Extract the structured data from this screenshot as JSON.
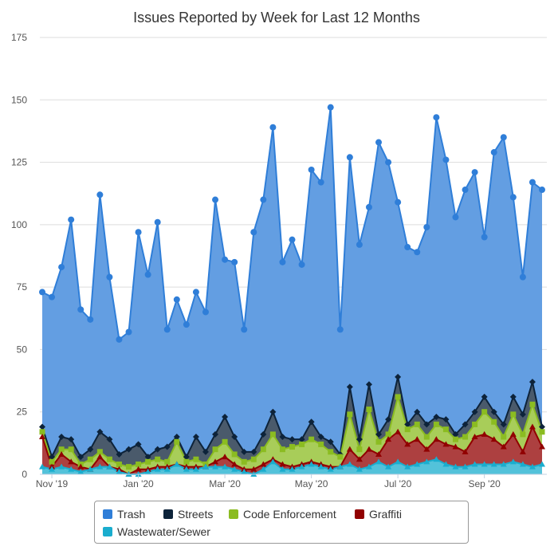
{
  "chart_data": {
    "type": "area",
    "stacked": true,
    "title": "Issues Reported by Week for Last 12 Months",
    "xlabel": "",
    "ylabel": "",
    "ylim": [
      0,
      175
    ],
    "y_ticks": [
      0,
      25,
      50,
      75,
      100,
      125,
      150,
      175
    ],
    "x_tick_labels": [
      {
        "label": "Nov '19",
        "week_index": 1
      },
      {
        "label": "Jan '20",
        "week_index": 10
      },
      {
        "label": "Mar '20",
        "week_index": 19
      },
      {
        "label": "May '20",
        "week_index": 28
      },
      {
        "label": "Jul '20",
        "week_index": 37
      },
      {
        "label": "Sep '20",
        "week_index": 46
      }
    ],
    "grid": true,
    "legend_position": "bottom",
    "colors": {
      "trash": "#2f7ed8",
      "streets": "#0d233a",
      "code_enforcement": "#8bbc21",
      "graffiti": "#910000",
      "wastewater": "#1aadce"
    },
    "series": [
      {
        "name": "Trash",
        "key": "trash",
        "marker": "circle",
        "cumulative_totals": [
          73,
          71,
          83,
          102,
          66,
          62,
          112,
          79,
          54,
          57,
          97,
          80,
          101,
          58,
          70,
          60,
          73,
          65,
          110,
          86,
          85,
          58,
          97,
          110,
          139,
          85,
          94,
          84,
          122,
          117,
          147,
          58,
          127,
          92,
          107,
          133,
          125,
          109,
          91,
          89,
          99,
          143,
          126,
          103,
          114,
          121,
          95,
          129,
          135,
          111,
          79,
          117,
          114
        ]
      },
      {
        "name": "Streets",
        "key": "streets",
        "marker": "diamond",
        "cumulative_totals": [
          19,
          7,
          15,
          14,
          7,
          10,
          17,
          14,
          8,
          10,
          12,
          7,
          10,
          11,
          15,
          7,
          15,
          9,
          16,
          23,
          15,
          9,
          9,
          16,
          25,
          15,
          14,
          14,
          21,
          15,
          13,
          8,
          35,
          14,
          36,
          16,
          22,
          39,
          20,
          25,
          20,
          23,
          22,
          16,
          20,
          25,
          31,
          25,
          20,
          31,
          24,
          37,
          19
        ]
      },
      {
        "name": "Code Enforcement",
        "key": "code_enforcement",
        "marker": "square",
        "cumulative_totals": [
          17,
          5,
          10,
          10,
          4,
          6,
          9,
          6,
          4,
          3,
          4,
          5,
          6,
          5,
          13,
          5,
          6,
          4,
          10,
          13,
          8,
          5,
          6,
          10,
          16,
          10,
          11,
          12,
          14,
          12,
          9,
          7,
          24,
          10,
          26,
          13,
          16,
          31,
          18,
          20,
          15,
          20,
          18,
          14,
          15,
          20,
          25,
          21,
          15,
          24,
          16,
          28,
          17
        ]
      },
      {
        "name": "Graffiti",
        "key": "graffiti",
        "marker": "triangle",
        "cumulative_totals": [
          15,
          3,
          8,
          5,
          3,
          2,
          7,
          3,
          2,
          0,
          2,
          2,
          3,
          3,
          4,
          3,
          3,
          3,
          5,
          7,
          4,
          2,
          2,
          4,
          6,
          4,
          3,
          4,
          5,
          4,
          3,
          3,
          10,
          6,
          10,
          8,
          14,
          17,
          12,
          14,
          10,
          14,
          12,
          11,
          9,
          15,
          16,
          14,
          11,
          16,
          9,
          19,
          11
        ]
      },
      {
        "name": "Wastewater/Sewer",
        "key": "wastewater",
        "marker": "triangle",
        "cumulative_totals": [
          3,
          2,
          3,
          2,
          1,
          2,
          3,
          3,
          1,
          0,
          0,
          1,
          2,
          2,
          4,
          2,
          2,
          3,
          3,
          3,
          2,
          1,
          0,
          2,
          5,
          2,
          2,
          3,
          4,
          3,
          2,
          3,
          4,
          2,
          3,
          5,
          3,
          5,
          3,
          4,
          5,
          6,
          4,
          3,
          3,
          4,
          4,
          4,
          4,
          5,
          4,
          3,
          4
        ]
      }
    ]
  }
}
